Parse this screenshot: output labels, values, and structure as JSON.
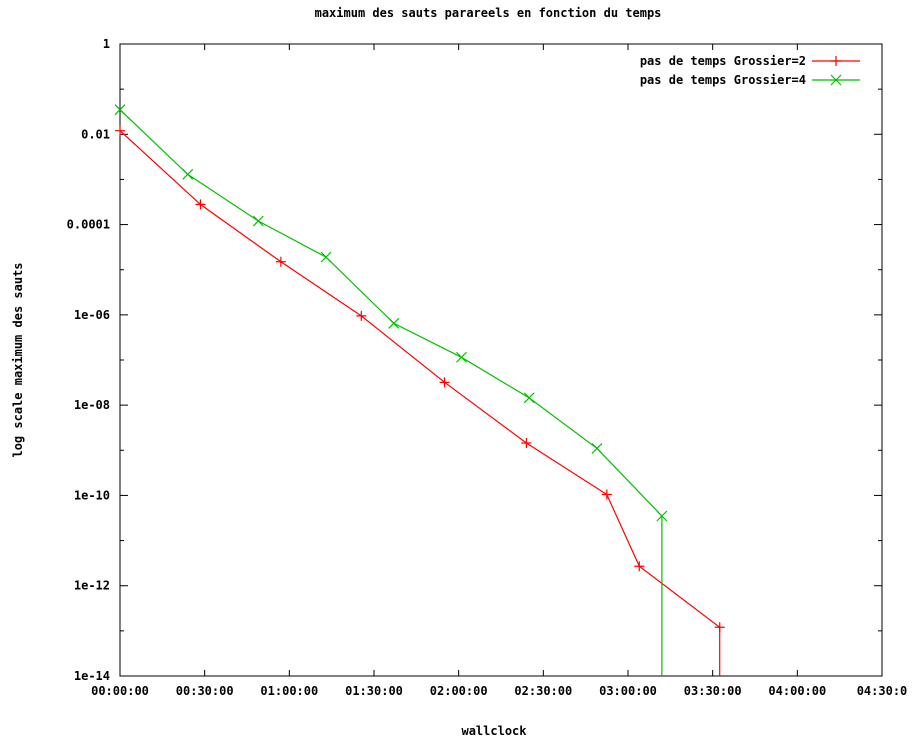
{
  "chart_data": {
    "type": "line",
    "title": "maximum des sauts parareels en fonction du temps",
    "xlabel": "wallclock",
    "ylabel": "log scale maximum des sauts",
    "xlim_seconds": [
      0,
      16200
    ],
    "x_tick_labels": [
      "00:00:00",
      "00:30:00",
      "01:00:00",
      "01:30:00",
      "02:00:00",
      "02:30:00",
      "03:00:00",
      "03:30:00",
      "04:00:00",
      "04:30:0"
    ],
    "y_scale": "log",
    "ylim": [
      1e-14,
      1
    ],
    "y_tick_labels": [
      "1e-14",
      "1e-12",
      "1e-10",
      "1e-08",
      "1e-06",
      "0.0001",
      "0.01",
      "1"
    ],
    "grid": false,
    "legend_position": "top-right",
    "series": [
      {
        "name": "pas de temps Grossier=2",
        "color": "#ff0000",
        "marker": "plus",
        "x": [
          "00:00:00",
          "00:28:30",
          "00:57:00",
          "01:25:30",
          "01:55:00",
          "02:24:00",
          "02:52:30",
          "03:04:00",
          "03:32:30",
          "03:32:30"
        ],
        "y": [
          0.012,
          0.00028,
          1.5e-05,
          9.5e-07,
          3.2e-08,
          1.45e-09,
          1.05e-10,
          2.7e-12,
          1.2e-13,
          1e-14
        ],
        "marked": [
          true,
          true,
          true,
          true,
          true,
          true,
          true,
          true,
          true,
          false
        ]
      },
      {
        "name": "pas de temps Grossier=4",
        "color": "#00c000",
        "marker": "cross",
        "x": [
          "00:00:00",
          "00:24:00",
          "00:49:00",
          "01:13:00",
          "01:37:00",
          "02:01:00",
          "02:25:00",
          "02:49:00",
          "03:12:00",
          "03:12:00"
        ],
        "y": [
          0.035,
          0.0013,
          0.00012,
          1.9e-05,
          6.5e-07,
          1.15e-07,
          1.45e-08,
          1.1e-09,
          3.5e-11,
          1e-14
        ],
        "marked": [
          true,
          true,
          true,
          true,
          true,
          true,
          true,
          true,
          true,
          false
        ]
      }
    ]
  }
}
